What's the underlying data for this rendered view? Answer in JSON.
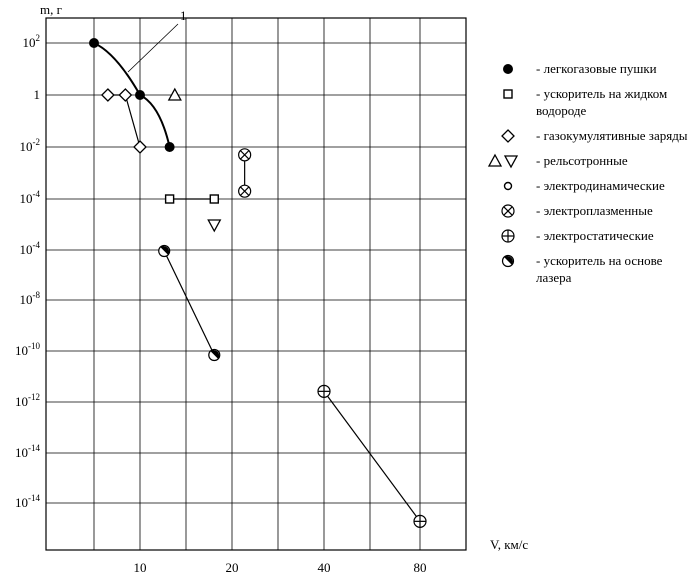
{
  "chart_data": {
    "type": "scatter",
    "title": "",
    "ylabel": "m, г",
    "xlabel": "V, км/с",
    "y_log_scale": true,
    "y_ticks": [
      {
        "base": "10",
        "exp": "2"
      },
      {
        "base": "1",
        "exp": ""
      },
      {
        "base": "10",
        "exp": "-2"
      },
      {
        "base": "10",
        "exp": "-4"
      },
      {
        "base": "10",
        "exp": "-4"
      },
      {
        "base": "10",
        "exp": "-8"
      },
      {
        "base": "10",
        "exp": "-10"
      },
      {
        "base": "10",
        "exp": "-12"
      },
      {
        "base": "10",
        "exp": "-14"
      },
      {
        "base": "10",
        "exp": "-14"
      }
    ],
    "x_ticks": [
      "10",
      "20",
      "40",
      "80"
    ],
    "annotation": "1",
    "series": [
      {
        "name": "- легкогазовые пушки",
        "marker": "filled-circle",
        "points": [
          [
            6,
            100
          ],
          [
            10,
            1
          ],
          [
            12.5,
            0.01
          ]
        ],
        "connect": "curve"
      },
      {
        "name": "- ускоритель на жидком водороде",
        "marker": "square",
        "points": [
          [
            12.5,
            0.0001
          ],
          [
            17.5,
            0.0001
          ]
        ],
        "connect": "line"
      },
      {
        "name": "- газокумулятивные заряды",
        "marker": "diamond",
        "points": [
          [
            7,
            1
          ],
          [
            8.5,
            1
          ],
          [
            10,
            0.01
          ]
        ],
        "connect": "line"
      },
      {
        "name": "- рельсотронные",
        "marker": "triangles",
        "points": [
          [
            13,
            1
          ],
          [
            17.5,
            1e-05
          ]
        ],
        "connect": "none"
      },
      {
        "name": "- электродинамические",
        "marker": "small-circle",
        "points": [],
        "connect": "none"
      },
      {
        "name": "- электроплазменные",
        "marker": "circle-x",
        "points": [
          [
            22,
            0.005
          ],
          [
            22,
            0.0002
          ]
        ],
        "connect": "line"
      },
      {
        "name": "- электростатические",
        "marker": "circle-plus",
        "points": [
          [
            40,
            4e-12
          ],
          [
            80,
            4e-17
          ]
        ],
        "connect": "line"
      },
      {
        "name": "- ускоритель на основе лазера",
        "marker": "half-circle",
        "points": [
          [
            12,
            1e-06
          ],
          [
            17.5,
            1e-10
          ]
        ],
        "connect": "line"
      }
    ],
    "legend": [
      {
        "marker": "filled-circle",
        "text": "- легкогазовые пушки"
      },
      {
        "marker": "square",
        "text": "- ускоритель на жидком водороде"
      },
      {
        "marker": "diamond",
        "text": "- газокумулятивные заряды"
      },
      {
        "marker": "triangles",
        "text": "- рельсотронные"
      },
      {
        "marker": "small-circle",
        "text": "- электродинамические"
      },
      {
        "marker": "circle-x",
        "text": "- электроплазменные"
      },
      {
        "marker": "circle-plus",
        "text": "- электростатические"
      },
      {
        "marker": "half-circle",
        "text": "- ускоритель на основе лазера"
      }
    ],
    "legend_position": "right",
    "grid": true
  }
}
